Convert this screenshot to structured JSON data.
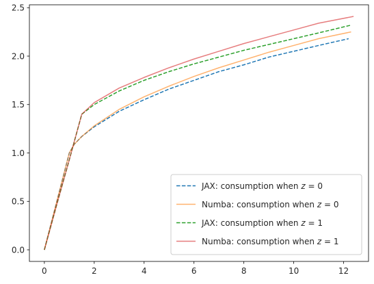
{
  "chart_data": {
    "type": "line",
    "title": "",
    "xlabel": "",
    "ylabel": "",
    "xlim": [
      -0.6,
      13.0
    ],
    "ylim": [
      -0.12,
      2.53
    ],
    "xticks": [
      0,
      2,
      4,
      6,
      8,
      10,
      12
    ],
    "xtick_labels": [
      "0",
      "2",
      "4",
      "6",
      "8",
      "10",
      "12"
    ],
    "yticks": [
      0.0,
      0.5,
      1.0,
      1.5,
      2.0,
      2.5
    ],
    "ytick_labels": [
      "0.0",
      "0.5",
      "1.0",
      "1.5",
      "2.0",
      "2.5"
    ],
    "grid": false,
    "legend_position": "lower-right",
    "series": [
      {
        "name": "JAX: consumption when z = 0",
        "legend_prefix": "JAX: consumption when ",
        "color": "#1f77b4",
        "dash": "dashed",
        "alpha": 1.0,
        "x": [
          0,
          0.5,
          1.0,
          1.2,
          1.5,
          2,
          3,
          4,
          5,
          6,
          7,
          8,
          9,
          10,
          11,
          12.2
        ],
        "y": [
          0,
          0.5,
          1.0,
          1.09,
          1.17,
          1.27,
          1.43,
          1.55,
          1.66,
          1.75,
          1.84,
          1.91,
          1.99,
          2.05,
          2.11,
          2.18
        ]
      },
      {
        "name": "Numba: consumption when z = 0",
        "legend_prefix": "Numba: consumption when ",
        "color": "#ff7f0e",
        "dash": "solid",
        "alpha": 0.6,
        "x": [
          0,
          0.5,
          1.0,
          1.2,
          1.5,
          2,
          3,
          4,
          5,
          6,
          7,
          8,
          9,
          10,
          11,
          12.3
        ],
        "y": [
          0,
          0.5,
          1.0,
          1.09,
          1.17,
          1.28,
          1.45,
          1.58,
          1.69,
          1.79,
          1.88,
          1.96,
          2.04,
          2.11,
          2.18,
          2.25
        ]
      },
      {
        "name": "JAX: consumption when z = 1",
        "legend_prefix": "JAX: consumption when ",
        "color": "#2ca02c",
        "dash": "dashed",
        "alpha": 1.0,
        "x": [
          0,
          0.5,
          1.0,
          1.5,
          2,
          3,
          4,
          5,
          6,
          7,
          8,
          9,
          10,
          11,
          12.3
        ],
        "y": [
          0,
          0.47,
          0.93,
          1.4,
          1.5,
          1.64,
          1.75,
          1.84,
          1.92,
          1.99,
          2.06,
          2.12,
          2.18,
          2.24,
          2.32
        ]
      },
      {
        "name": "Numba: consumption when z = 1",
        "legend_prefix": "Numba: consumption when ",
        "color": "#d62728",
        "dash": "solid",
        "alpha": 0.6,
        "x": [
          0,
          0.5,
          1.0,
          1.5,
          2,
          3,
          4,
          5,
          6,
          7,
          8,
          9,
          10,
          11,
          12.4
        ],
        "y": [
          0,
          0.47,
          0.93,
          1.4,
          1.52,
          1.67,
          1.78,
          1.88,
          1.97,
          2.05,
          2.13,
          2.2,
          2.27,
          2.34,
          2.41
        ]
      }
    ],
    "legend_z_values": [
      "0",
      "0",
      "1",
      "1"
    ]
  }
}
